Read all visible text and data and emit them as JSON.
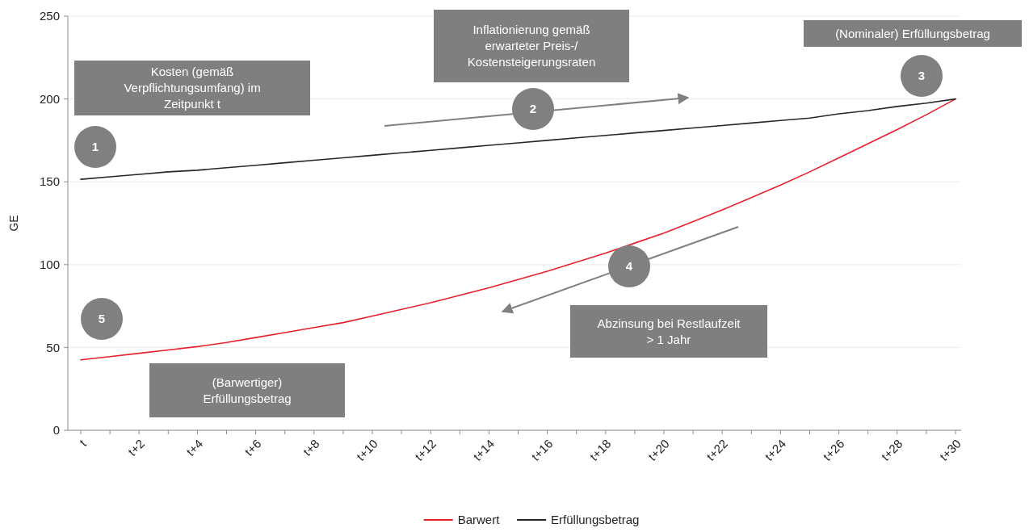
{
  "chart_data": {
    "type": "line",
    "ylabel": "GE",
    "categories": [
      "t",
      null,
      "t+2",
      null,
      "t+4",
      null,
      "t+6",
      null,
      "t+8",
      null,
      "t+10",
      null,
      "t+12",
      null,
      "t+14",
      null,
      "t+16",
      null,
      "t+18",
      null,
      "t+20",
      null,
      "t+22",
      null,
      "t+24",
      null,
      "t+26",
      null,
      "t+28",
      null,
      "t+30"
    ],
    "series": [
      {
        "name": "Barwert",
        "color": "#e8202a",
        "values": [
          42.5,
          44.5,
          46.5,
          48.5,
          50.5,
          53,
          56,
          59,
          62,
          65,
          69,
          73,
          77,
          81.5,
          86,
          91,
          96,
          101.5,
          107,
          113,
          119,
          126,
          133,
          140.5,
          148,
          156,
          164.5,
          173,
          181.5,
          190.5,
          200
        ]
      },
      {
        "name": "Erfüllungsbetrag",
        "color": "#262626",
        "values": [
          151.5,
          153,
          154.5,
          156,
          157,
          158.5,
          160,
          161.5,
          163,
          164.5,
          166,
          167.5,
          169,
          170.5,
          172,
          173.5,
          175,
          176.5,
          178,
          179.5,
          181,
          182.5,
          184,
          185.5,
          187,
          188.5,
          191,
          193,
          195.5,
          197.5,
          200
        ]
      }
    ],
    "ylim": [
      0,
      250
    ],
    "yticks": [
      0,
      50,
      100,
      150,
      200,
      250
    ],
    "grid": "y",
    "legend": "bottom",
    "line_style": "solid",
    "marker": "none",
    "annotations": [
      "Kosten (gemäß Verpflichtungsumfang) im Zeitpunkt t",
      "Inflationierung gemäß erwarteter Preis-/Kostensteigerungsraten",
      "(Nominaler) Erfüllungsbetrag",
      "Abzinsung bei Restlaufzeit > 1 Jahr",
      "(Barwertiger) Erfüllungsbetrag",
      "1",
      "2",
      "3",
      "4",
      "5"
    ]
  }
}
